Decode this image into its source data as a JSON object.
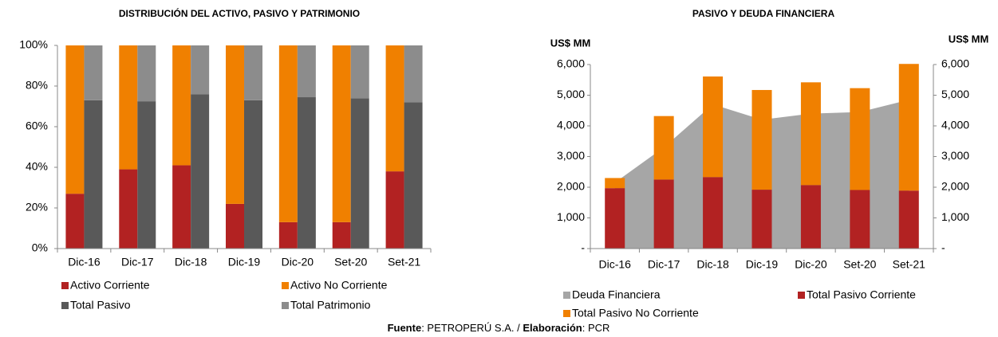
{
  "chart_data": [
    {
      "type": "bar",
      "stacked": true,
      "title": "DISTRIBUCIÓN DEL ACTIVO, PASIVO Y PATRIMONIO",
      "categories": [
        "Dic-16",
        "Dic-17",
        "Dic-18",
        "Dic-19",
        "Dic-20",
        "Set-20",
        "Set-21"
      ],
      "series": [
        {
          "name": "Activo Corriente",
          "color": "#b22222",
          "stack": "activo",
          "values": [
            27,
            39,
            41,
            22,
            13,
            13,
            38
          ]
        },
        {
          "name": "Activo No Corriente",
          "color": "#f08000",
          "stack": "activo",
          "values": [
            73,
            61,
            59,
            78,
            87,
            87,
            62
          ]
        },
        {
          "name": "Total Pasivo",
          "color": "#595959",
          "stack": "pasivo",
          "values": [
            73,
            72.5,
            76,
            73,
            74.5,
            74,
            72
          ]
        },
        {
          "name": "Total Patrimonio",
          "color": "#8c8c8c",
          "stack": "pasivo",
          "values": [
            27,
            27.5,
            24,
            27,
            25.5,
            26,
            28
          ]
        }
      ],
      "ylim": [
        0,
        100
      ],
      "yticks": [
        {
          "value": 0,
          "label": "0%"
        },
        {
          "value": 20,
          "label": "20%"
        },
        {
          "value": 40,
          "label": "40%"
        },
        {
          "value": 60,
          "label": "60%"
        },
        {
          "value": 80,
          "label": "80%"
        },
        {
          "value": 100,
          "label": "100%"
        }
      ]
    },
    {
      "type": "bar",
      "stacked": true,
      "title": "PASIVO Y DEUDA FINANCIERA",
      "y_label": "US$ MM",
      "y2_label": "US$ MM",
      "categories": [
        "Dic-16",
        "Dic-17",
        "Dic-18",
        "Dic-19",
        "Dic-20",
        "Set-20",
        "Set-21"
      ],
      "series": [
        {
          "name": "Deuda Financiera",
          "color": "#a6a6a6",
          "type": "area",
          "values": [
            2150,
            3300,
            4700,
            4200,
            4400,
            4450,
            4850
          ]
        },
        {
          "name": "Total Pasivo Corriente",
          "color": "#b22222",
          "stack": "pasivo",
          "values": [
            1970,
            2250,
            2330,
            1920,
            2070,
            1910,
            1890
          ]
        },
        {
          "name": "Total  Pasivo No Corriente",
          "color": "#f08000",
          "stack": "pasivo",
          "values": [
            330,
            2070,
            3280,
            3250,
            3350,
            3320,
            4130
          ]
        }
      ],
      "ylim": [
        0,
        6000
      ],
      "yticks": [
        {
          "value": 0,
          "label": "-"
        },
        {
          "value": 1000,
          "label": "1,000"
        },
        {
          "value": 2000,
          "label": "2,000"
        },
        {
          "value": 3000,
          "label": "3,000"
        },
        {
          "value": 4000,
          "label": "4,000"
        },
        {
          "value": 5000,
          "label": "5,000"
        },
        {
          "value": 6000,
          "label": "6,000"
        }
      ],
      "y2lim": [
        0,
        6000
      ],
      "y2ticks": [
        {
          "value": 0,
          "label": "-"
        },
        {
          "value": 1000,
          "label": "1,000"
        },
        {
          "value": 2000,
          "label": "2,000"
        },
        {
          "value": 3000,
          "label": "3,000"
        },
        {
          "value": 4000,
          "label": "4,000"
        },
        {
          "value": 5000,
          "label": "5,000"
        },
        {
          "value": 6000,
          "label": "6,000"
        }
      ]
    }
  ],
  "source": [
    {
      "text": "Fuente",
      "bold": true
    },
    {
      "text": ": PETROPERÚ S.A. / ",
      "bold": false
    },
    {
      "text": "Elaboración",
      "bold": true
    },
    {
      "text": ": PCR",
      "bold": false
    }
  ]
}
